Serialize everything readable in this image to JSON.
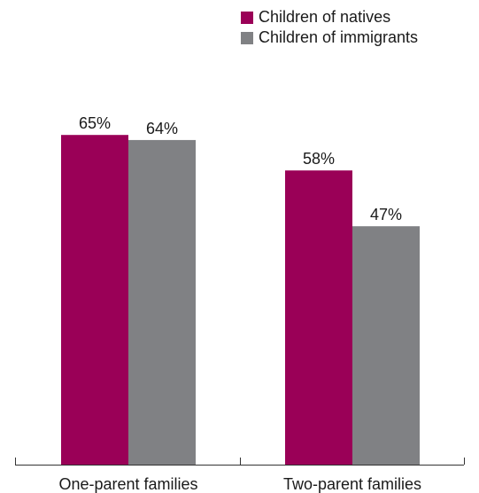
{
  "chart_data": {
    "type": "bar",
    "title": "",
    "xlabel": "",
    "ylabel": "",
    "categories": [
      "One-parent families",
      "Two-parent families"
    ],
    "series": [
      {
        "name": "Children of natives",
        "color": "#9a0057",
        "values": [
          65,
          58
        ]
      },
      {
        "name": "Children of immigrants",
        "color": "#808184",
        "values": [
          64,
          47
        ]
      }
    ],
    "value_suffix": "%",
    "ylim": [
      0,
      100
    ],
    "grid": false,
    "legend_position": "top-right"
  }
}
